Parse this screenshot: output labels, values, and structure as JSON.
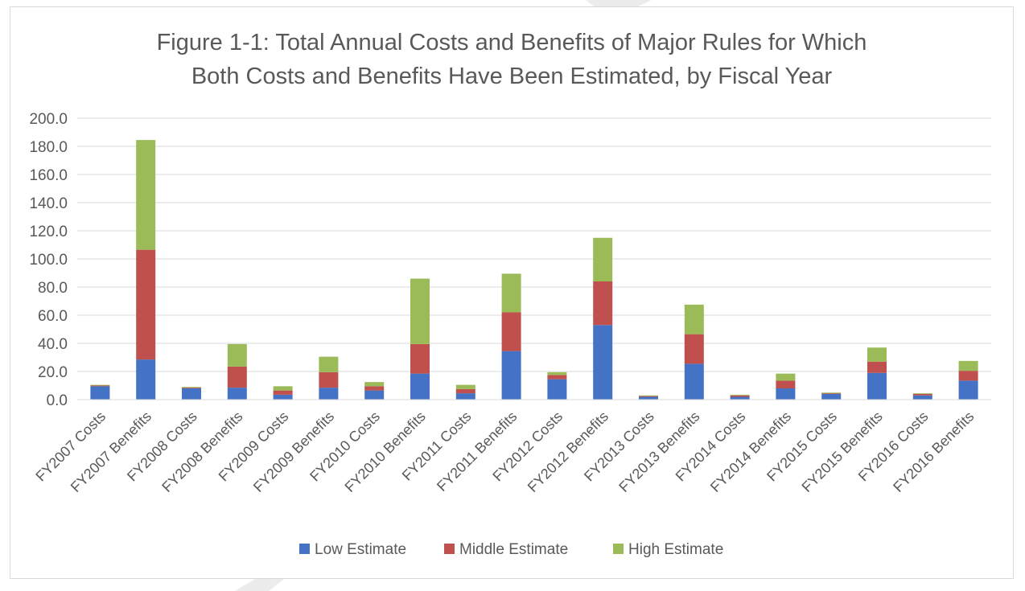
{
  "chart_data": {
    "type": "bar",
    "stacked": true,
    "title": "Figure 1-1: Total Annual Costs and Benefits of Major Rules for Which Both Costs and Benefits Have Been Estimated, by Fiscal Year",
    "title_lines": [
      "Figure 1-1: Total Annual Costs and Benefits of Major Rules for Which",
      "Both Costs and Benefits Have Been Estimated, by Fiscal Year"
    ],
    "categories": [
      "FY2007 Costs",
      "FY2007 Benefits",
      "FY2008 Costs",
      "FY2008 Benefits",
      "FY2009 Costs",
      "FY2009 Benefits",
      "FY2010 Costs",
      "FY2010 Benefits",
      "FY2011 Costs",
      "FY2011 Benefits",
      "FY2012 Costs",
      "FY2012 Benefits",
      "FY2013 Costs",
      "FY2013 Benefits",
      "FY2014 Costs",
      "FY2014 Benefits",
      "FY2015 Costs",
      "FY2015 Benefits",
      "FY2016 Costs",
      "FY2016 Benefits"
    ],
    "series": [
      {
        "name": "Low Estimate",
        "color": "#4472C4",
        "values": [
          9.5,
          28.5,
          8.0,
          8.5,
          3.5,
          8.5,
          6.5,
          18.5,
          4.5,
          34.5,
          14.5,
          53.0,
          2.0,
          25.5,
          2.0,
          8.0,
          4.0,
          19.0,
          3.0,
          13.5
        ]
      },
      {
        "name": "Middle Estimate",
        "color": "#C0504D",
        "values": [
          0.5,
          78.0,
          0.5,
          15.0,
          3.0,
          11.0,
          3.0,
          21.0,
          3.0,
          27.5,
          3.0,
          31.0,
          0.5,
          21.0,
          1.0,
          5.5,
          0.5,
          8.0,
          1.0,
          7.0
        ]
      },
      {
        "name": "High Estimate",
        "color": "#9BBB59",
        "values": [
          0.5,
          78.0,
          0.5,
          16.0,
          3.0,
          11.0,
          3.0,
          46.5,
          3.0,
          27.5,
          2.0,
          31.0,
          0.5,
          21.0,
          0.5,
          5.0,
          0.5,
          10.0,
          0.5,
          7.0
        ]
      }
    ],
    "ylim": [
      0,
      200
    ],
    "yticks": [
      "0.0",
      "20.0",
      "40.0",
      "60.0",
      "80.0",
      "100.0",
      "120.0",
      "140.0",
      "160.0",
      "180.0",
      "200.0"
    ],
    "xlabel": "",
    "ylabel": "",
    "grid": true,
    "legend_position": "bottom",
    "gridline_color": "#d9d9d9"
  }
}
